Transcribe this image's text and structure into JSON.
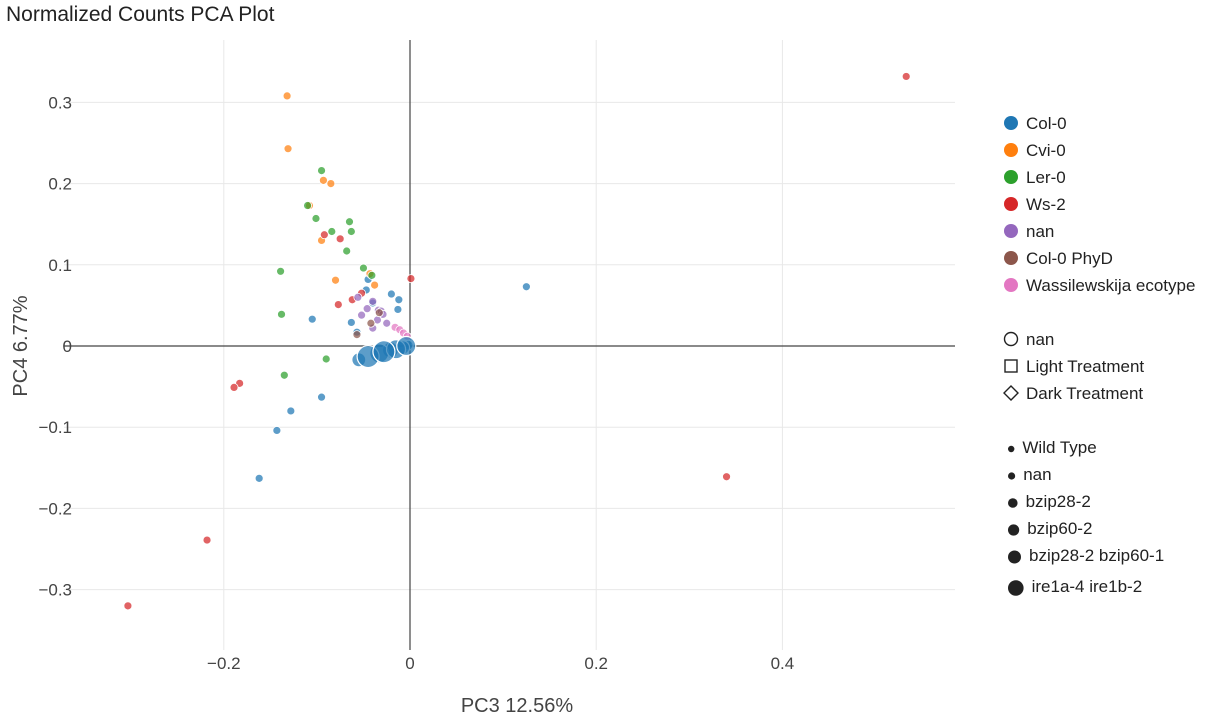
{
  "page_title": "Normalized Counts PCA Plot",
  "colors": {
    "Col-0": "#1f77b4",
    "Cvi-0": "#ff7f0e",
    "Ler-0": "#2ca02c",
    "Ws-2": "#d62728",
    "nan": "#9467bd",
    "Col-0 PhyD": "#8c564b",
    "Wassilewskija ecotype": "#e377c2",
    "grid": "#e8e8e8",
    "zeroline": "#444444",
    "marker_edge": "#ffffff",
    "legend_mark": "#222222"
  },
  "chart_data": {
    "type": "scatter",
    "xlabel": "PC3 12.56%",
    "ylabel": "PC4 6.77%",
    "xlim": [
      -0.345,
      0.59
    ],
    "ylim": [
      -0.375,
      0.375
    ],
    "x_ticks": [
      -0.2,
      0,
      0.2,
      0.4
    ],
    "x_tick_labels": [
      "−0.2",
      "0",
      "0.2",
      "0.4"
    ],
    "y_ticks": [
      -0.3,
      -0.2,
      -0.1,
      0,
      0.1,
      0.2,
      0.3
    ],
    "y_tick_labels": [
      "−0.3",
      "−0.2",
      "−0.1",
      "0",
      "0.1",
      "0.2",
      "0.3"
    ],
    "grid": true,
    "legend_position": "right",
    "color_legend": [
      "Col-0",
      "Cvi-0",
      "Ler-0",
      "Ws-2",
      "nan",
      "Col-0 PhyD",
      "Wassilewskija ecotype"
    ],
    "symbol_legend": [
      {
        "label": "nan",
        "symbol": "circle"
      },
      {
        "label": "Light Treatment",
        "symbol": "square"
      },
      {
        "label": "Dark Treatment",
        "symbol": "diamond"
      }
    ],
    "size_legend": [
      {
        "label": "Wild Type",
        "size": 1
      },
      {
        "label": "nan",
        "size": 2
      },
      {
        "label": "bzip28-2",
        "size": 3
      },
      {
        "label": "bzip60-2",
        "size": 4
      },
      {
        "label": "bzip28-2 bzip60-1",
        "size": 5
      },
      {
        "label": "ire1a-4 ire1b-2",
        "size": 6
      }
    ],
    "series": [
      {
        "name": "Col-0",
        "points": [
          {
            "x": 0.125,
            "y": 0.073,
            "s": 1
          },
          {
            "x": -0.105,
            "y": 0.033,
            "s": 1
          },
          {
            "x": -0.095,
            "y": -0.063,
            "s": 1
          },
          {
            "x": -0.128,
            "y": -0.08,
            "s": 1
          },
          {
            "x": -0.143,
            "y": -0.104,
            "s": 1
          },
          {
            "x": -0.162,
            "y": -0.163,
            "s": 1
          },
          {
            "x": -0.063,
            "y": 0.029,
            "s": 1
          },
          {
            "x": -0.057,
            "y": 0.017,
            "s": 1
          },
          {
            "x": -0.047,
            "y": 0.069,
            "s": 1
          },
          {
            "x": -0.045,
            "y": 0.082,
            "s": 1
          },
          {
            "x": -0.04,
            "y": 0.053,
            "s": 1
          },
          {
            "x": -0.02,
            "y": 0.064,
            "s": 1
          },
          {
            "x": -0.013,
            "y": 0.045,
            "s": 1
          },
          {
            "x": -0.012,
            "y": 0.057,
            "s": 1
          },
          {
            "x": -0.055,
            "y": -0.017,
            "s": 3
          },
          {
            "x": -0.045,
            "y": -0.013,
            "s": 6
          },
          {
            "x": -0.033,
            "y": -0.009,
            "s": 5
          },
          {
            "x": -0.028,
            "y": -0.007,
            "s": 6
          },
          {
            "x": -0.021,
            "y": -0.005,
            "s": 4
          },
          {
            "x": -0.015,
            "y": -0.004,
            "s": 5
          },
          {
            "x": -0.008,
            "y": -0.002,
            "s": 3
          },
          {
            "x": -0.004,
            "y": 0.0,
            "s": 5
          },
          {
            "x": -0.002,
            "y": 0.001,
            "s": 2
          }
        ]
      },
      {
        "name": "Cvi-0",
        "points": [
          {
            "x": -0.132,
            "y": 0.308,
            "s": 1
          },
          {
            "x": -0.131,
            "y": 0.243,
            "s": 1
          },
          {
            "x": -0.093,
            "y": 0.204,
            "s": 1
          },
          {
            "x": -0.085,
            "y": 0.2,
            "s": 1
          },
          {
            "x": -0.108,
            "y": 0.173,
            "s": 1
          },
          {
            "x": -0.095,
            "y": 0.13,
            "s": 1
          },
          {
            "x": -0.08,
            "y": 0.081,
            "s": 1
          },
          {
            "x": -0.043,
            "y": 0.089,
            "s": 1
          },
          {
            "x": -0.038,
            "y": 0.075,
            "s": 1
          }
        ]
      },
      {
        "name": "Ler-0",
        "points": [
          {
            "x": -0.095,
            "y": 0.216,
            "s": 1
          },
          {
            "x": -0.11,
            "y": 0.173,
            "s": 1
          },
          {
            "x": -0.101,
            "y": 0.157,
            "s": 1
          },
          {
            "x": -0.065,
            "y": 0.153,
            "s": 1
          },
          {
            "x": -0.084,
            "y": 0.141,
            "s": 1
          },
          {
            "x": -0.063,
            "y": 0.141,
            "s": 1
          },
          {
            "x": -0.068,
            "y": 0.117,
            "s": 1
          },
          {
            "x": -0.05,
            "y": 0.096,
            "s": 1
          },
          {
            "x": -0.041,
            "y": 0.087,
            "s": 1
          },
          {
            "x": -0.139,
            "y": 0.092,
            "s": 1
          },
          {
            "x": -0.138,
            "y": 0.039,
            "s": 1
          },
          {
            "x": -0.09,
            "y": -0.016,
            "s": 1
          },
          {
            "x": -0.135,
            "y": -0.036,
            "s": 1
          }
        ]
      },
      {
        "name": "Ws-2",
        "points": [
          {
            "x": 0.533,
            "y": 0.332,
            "s": 1
          },
          {
            "x": 0.34,
            "y": -0.161,
            "s": 1
          },
          {
            "x": 0.001,
            "y": 0.083,
            "s": 1
          },
          {
            "x": -0.092,
            "y": 0.137,
            "s": 1
          },
          {
            "x": -0.075,
            "y": 0.132,
            "s": 1
          },
          {
            "x": -0.062,
            "y": 0.057,
            "s": 1
          },
          {
            "x": -0.052,
            "y": 0.065,
            "s": 1
          },
          {
            "x": -0.077,
            "y": 0.051,
            "s": 1
          },
          {
            "x": -0.183,
            "y": -0.046,
            "s": 1
          },
          {
            "x": -0.189,
            "y": -0.051,
            "s": 1
          },
          {
            "x": -0.218,
            "y": -0.239,
            "s": 1
          },
          {
            "x": -0.303,
            "y": -0.32,
            "s": 1
          }
        ]
      },
      {
        "name": "nan",
        "points": [
          {
            "x": -0.04,
            "y": 0.055,
            "s": 1
          },
          {
            "x": -0.052,
            "y": 0.038,
            "s": 1
          },
          {
            "x": -0.046,
            "y": 0.046,
            "s": 1
          },
          {
            "x": -0.034,
            "y": 0.044,
            "s": 1
          },
          {
            "x": -0.031,
            "y": 0.043,
            "s": 1
          },
          {
            "x": -0.029,
            "y": 0.039,
            "s": 1
          },
          {
            "x": -0.035,
            "y": 0.032,
            "s": 1
          },
          {
            "x": -0.025,
            "y": 0.028,
            "s": 1
          },
          {
            "x": -0.04,
            "y": 0.022,
            "s": 1
          },
          {
            "x": -0.056,
            "y": 0.06,
            "s": 1
          }
        ]
      },
      {
        "name": "Col-0 PhyD",
        "points": [
          {
            "x": -0.057,
            "y": 0.014,
            "s": 1
          },
          {
            "x": -0.042,
            "y": 0.028,
            "s": 1
          },
          {
            "x": -0.033,
            "y": 0.041,
            "s": 1
          }
        ]
      },
      {
        "name": "Wassilewskija ecotype",
        "points": [
          {
            "x": -0.016,
            "y": 0.023,
            "s": 1
          },
          {
            "x": -0.011,
            "y": 0.02,
            "s": 1
          },
          {
            "x": -0.007,
            "y": 0.016,
            "s": 1
          },
          {
            "x": -0.003,
            "y": 0.012,
            "s": 1
          }
        ]
      }
    ]
  }
}
